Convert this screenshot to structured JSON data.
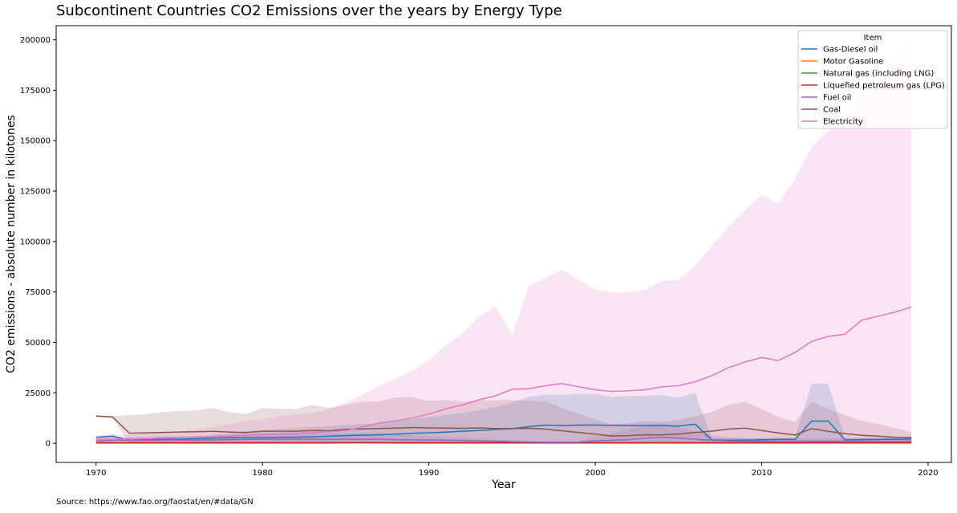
{
  "chart_data": {
    "type": "line",
    "title": "Subcontinent Countries CO2 Emissions over the years by Energy Type",
    "xlabel": "Year",
    "ylabel": "CO2 emissions - absolute number in kilotones",
    "xlim": [
      1967.6,
      2021.4
    ],
    "ylim": [
      -9500,
      207000
    ],
    "xticks": [
      1970,
      1980,
      1990,
      2000,
      2010,
      2020
    ],
    "yticks": [
      0,
      25000,
      50000,
      75000,
      100000,
      125000,
      150000,
      175000,
      200000
    ],
    "ytick_labels": [
      "0",
      "25000",
      "50000",
      "75000",
      "100000",
      "125000",
      "150000",
      "175000",
      "200000"
    ],
    "grid": false,
    "legend": {
      "title": "Item",
      "position": "top-right"
    },
    "source": "Source: https://www.fao.org/faostat/en/#data/GN",
    "x": [
      1970,
      1971,
      1972,
      1973,
      1974,
      1975,
      1976,
      1977,
      1978,
      1979,
      1980,
      1981,
      1982,
      1983,
      1984,
      1985,
      1986,
      1987,
      1988,
      1989,
      1990,
      1991,
      1992,
      1993,
      1994,
      1995,
      1996,
      1997,
      1998,
      1999,
      2000,
      2001,
      2002,
      2003,
      2004,
      2005,
      2006,
      2007,
      2008,
      2009,
      2010,
      2011,
      2012,
      2013,
      2014,
      2015,
      2016,
      2017,
      2018,
      2019
    ],
    "series": [
      {
        "name": "Gas-Diesel oil",
        "color": "#1f77b4",
        "values": [
          3000,
          3500,
          1500,
          1700,
          2000,
          2000,
          2200,
          2500,
          2700,
          2800,
          2800,
          2900,
          3000,
          3200,
          3500,
          3800,
          4000,
          4200,
          4500,
          5000,
          5200,
          5500,
          6000,
          6300,
          6800,
          7200,
          8200,
          9000,
          8800,
          9000,
          9000,
          8900,
          8800,
          8800,
          8800,
          8500,
          9500,
          1600,
          1500,
          1600,
          1700,
          1900,
          1900,
          11000,
          11000,
          1700,
          1800,
          1900,
          2000,
          2100
        ],
        "ci_lower": [
          0,
          0,
          0,
          0,
          0,
          0,
          0,
          0,
          0,
          0,
          0,
          0,
          0,
          0,
          0,
          0,
          0,
          0,
          0,
          0,
          0,
          0,
          0,
          0,
          0,
          0,
          0,
          0,
          0,
          0,
          0,
          0,
          0,
          0,
          0,
          0,
          0,
          0,
          0,
          0,
          0,
          0,
          0,
          0,
          0,
          0,
          0,
          0,
          0,
          0
        ],
        "ci_upper": [
          3200,
          3700,
          2000,
          2500,
          3000,
          3200,
          3500,
          4000,
          5000,
          6000,
          6500,
          7000,
          7500,
          8000,
          8500,
          9000,
          9500,
          10000,
          11000,
          12000,
          13000,
          14000,
          15000,
          16500,
          18000,
          20000,
          23000,
          24000,
          24000,
          24500,
          24500,
          23000,
          23500,
          23500,
          24000,
          22500,
          25000,
          2500,
          2500,
          2500,
          2500,
          2800,
          2800,
          29500,
          29500,
          2600,
          2700,
          2800,
          2900,
          3000
        ]
      },
      {
        "name": "Motor Gasoline",
        "color": "#ff7f0e",
        "values": [
          200,
          200,
          200,
          200,
          200,
          200,
          200,
          200,
          200,
          200,
          200,
          200,
          200,
          200,
          200,
          200,
          200,
          200,
          200,
          200,
          200,
          200,
          200,
          200,
          200,
          200,
          200,
          200,
          200,
          200,
          200,
          200,
          200,
          200,
          200,
          200,
          200,
          200,
          200,
          200,
          200,
          200,
          200,
          200,
          200,
          200,
          200,
          200,
          200,
          200
        ],
        "ci_lower": [
          0,
          0,
          0,
          0,
          0,
          0,
          0,
          0,
          0,
          0,
          0,
          0,
          0,
          0,
          0,
          0,
          0,
          0,
          0,
          0,
          0,
          0,
          0,
          0,
          0,
          0,
          0,
          0,
          0,
          0,
          0,
          0,
          0,
          0,
          0,
          0,
          0,
          0,
          0,
          0,
          0,
          0,
          0,
          0,
          0,
          0,
          0,
          0,
          0,
          0
        ],
        "ci_upper": [
          600,
          600,
          600,
          600,
          600,
          600,
          600,
          600,
          600,
          600,
          600,
          600,
          600,
          600,
          600,
          600,
          600,
          600,
          600,
          600,
          600,
          600,
          600,
          600,
          600,
          600,
          600,
          600,
          600,
          600,
          600,
          600,
          600,
          600,
          600,
          600,
          600,
          600,
          600,
          600,
          600,
          600,
          600,
          600,
          600,
          600,
          600,
          600,
          600,
          600
        ]
      },
      {
        "name": "Natural gas (including LNG)",
        "color": "#2ca02c",
        "values": [
          100,
          100,
          100,
          100,
          100,
          100,
          100,
          100,
          100,
          100,
          100,
          100,
          100,
          100,
          100,
          200,
          300,
          200,
          100,
          100,
          100,
          100,
          100,
          100,
          100,
          100,
          100,
          100,
          100,
          100,
          100,
          100,
          100,
          100,
          100,
          100,
          100,
          100,
          100,
          100,
          100,
          100,
          100,
          100,
          100,
          100,
          100,
          100,
          100,
          100
        ],
        "ci_lower": [
          0,
          0,
          0,
          0,
          0,
          0,
          0,
          0,
          0,
          0,
          0,
          0,
          0,
          0,
          0,
          0,
          0,
          0,
          0,
          0,
          0,
          0,
          0,
          0,
          0,
          0,
          0,
          0,
          0,
          0,
          0,
          0,
          0,
          0,
          0,
          0,
          0,
          0,
          0,
          0,
          0,
          0,
          0,
          0,
          0,
          0,
          0,
          0,
          0,
          0
        ],
        "ci_upper": [
          300,
          300,
          300,
          300,
          300,
          300,
          300,
          300,
          300,
          300,
          300,
          300,
          300,
          300,
          300,
          600,
          1000,
          600,
          300,
          300,
          300,
          300,
          300,
          300,
          300,
          300,
          300,
          300,
          300,
          300,
          300,
          300,
          300,
          300,
          300,
          300,
          300,
          300,
          300,
          300,
          300,
          300,
          300,
          300,
          300,
          300,
          300,
          300,
          300,
          300
        ]
      },
      {
        "name": "Liquefied petroleum gas (LPG)",
        "color": "#d62728",
        "values": [
          300,
          300,
          300,
          300,
          300,
          300,
          300,
          300,
          300,
          300,
          300,
          300,
          300,
          300,
          300,
          300,
          300,
          300,
          300,
          300,
          300,
          300,
          300,
          300,
          300,
          300,
          300,
          300,
          300,
          300,
          300,
          300,
          300,
          300,
          300,
          300,
          300,
          300,
          300,
          300,
          300,
          300,
          300,
          300,
          300,
          300,
          300,
          300,
          300,
          300
        ],
        "ci_lower": [
          0,
          0,
          0,
          0,
          0,
          0,
          0,
          0,
          0,
          0,
          0,
          0,
          0,
          0,
          0,
          0,
          0,
          0,
          0,
          0,
          0,
          0,
          0,
          0,
          0,
          0,
          0,
          0,
          0,
          0,
          0,
          0,
          0,
          0,
          0,
          0,
          0,
          0,
          0,
          0,
          0,
          0,
          0,
          0,
          0,
          0,
          0,
          0,
          0,
          0
        ],
        "ci_upper": [
          700,
          700,
          700,
          700,
          700,
          700,
          700,
          700,
          700,
          700,
          700,
          700,
          700,
          700,
          700,
          700,
          700,
          700,
          700,
          700,
          700,
          700,
          700,
          700,
          700,
          700,
          700,
          700,
          700,
          700,
          700,
          700,
          700,
          700,
          700,
          700,
          700,
          700,
          700,
          700,
          700,
          700,
          700,
          700,
          700,
          700,
          700,
          700,
          700,
          700
        ]
      },
      {
        "name": "Fuel oil",
        "color": "#9467bd",
        "values": [
          1200,
          1500,
          1500,
          1500,
          1600,
          1600,
          1600,
          1700,
          1800,
          1900,
          2000,
          2000,
          2000,
          2000,
          2000,
          2000,
          2000,
          2000,
          1800,
          1700,
          1600,
          1500,
          1400,
          1200,
          1000,
          800,
          600,
          500,
          500,
          500,
          1200,
          1500,
          1800,
          2500,
          3000,
          2500,
          2000,
          1500,
          1200,
          1000,
          1000,
          1000,
          1000,
          1000,
          1000,
          1000,
          1000,
          1000,
          1000,
          1000
        ],
        "ci_lower": [
          0,
          0,
          0,
          0,
          0,
          0,
          0,
          0,
          0,
          0,
          0,
          0,
          0,
          0,
          0,
          0,
          0,
          0,
          0,
          0,
          0,
          0,
          0,
          0,
          0,
          0,
          0,
          0,
          0,
          0,
          0,
          0,
          0,
          0,
          0,
          0,
          0,
          0,
          0,
          0,
          0,
          0,
          0,
          0,
          0,
          0,
          0,
          0,
          0,
          0
        ],
        "ci_upper": [
          2500,
          3000,
          3000,
          3000,
          3500,
          3500,
          3500,
          4000,
          4000,
          4500,
          5000,
          5000,
          5000,
          5000,
          5000,
          5000,
          5000,
          5000,
          4500,
          4000,
          3500,
          3000,
          3000,
          2500,
          2000,
          1600,
          1200,
          1000,
          1000,
          1000,
          3500,
          5000,
          7000,
          9000,
          10000,
          8000,
          6000,
          4000,
          3000,
          2500,
          2500,
          2500,
          2500,
          2500,
          2500,
          2500,
          2500,
          2500,
          2500,
          2500
        ]
      },
      {
        "name": "Coal",
        "color": "#8c564b",
        "values": [
          13500,
          13000,
          5000,
          5200,
          5400,
          5600,
          5700,
          5900,
          5600,
          5300,
          6000,
          6000,
          6000,
          6300,
          6200,
          6900,
          7100,
          7300,
          7500,
          7800,
          7600,
          7500,
          7400,
          7600,
          7300,
          7300,
          7400,
          7000,
          6200,
          5300,
          4500,
          3600,
          3800,
          4200,
          4100,
          4600,
          5400,
          6000,
          7000,
          7500,
          6300,
          5100,
          4100,
          7200,
          5900,
          4800,
          3900,
          3500,
          3000,
          2900
        ],
        "ci_lower": [
          13000,
          12500,
          0,
          0,
          0,
          0,
          0,
          0,
          0,
          0,
          0,
          0,
          0,
          0,
          0,
          0,
          0,
          0,
          0,
          0,
          0,
          0,
          0,
          0,
          0,
          0,
          0,
          0,
          0,
          0,
          0,
          0,
          0,
          0,
          0,
          0,
          0,
          0,
          0,
          0,
          0,
          0,
          0,
          0,
          0,
          0,
          0,
          0,
          0,
          0
        ],
        "ci_upper": [
          14000,
          13500,
          14000,
          14500,
          15500,
          16000,
          16200,
          17500,
          15500,
          14500,
          17500,
          17000,
          17000,
          19000,
          17500,
          19000,
          20500,
          20700,
          22700,
          22800,
          21000,
          21500,
          20500,
          21200,
          21300,
          21500,
          21000,
          20800,
          17500,
          14500,
          12000,
          9500,
          10000,
          11000,
          10500,
          11500,
          13500,
          15500,
          19000,
          20500,
          17000,
          13000,
          10700,
          20500,
          17000,
          14000,
          11000,
          9500,
          7500,
          5500
        ]
      },
      {
        "name": "Electricity",
        "color": "#e377c2",
        "values": [
          1800,
          2000,
          2200,
          2400,
          2600,
          2800,
          3000,
          3300,
          3600,
          3900,
          4200,
          4500,
          4900,
          5300,
          5700,
          6300,
          8000,
          10000,
          11000,
          12500,
          14500,
          17000,
          19000,
          21500,
          23500,
          26800,
          27000,
          28500,
          29600,
          28000,
          26500,
          25700,
          26000,
          26500,
          28000,
          28500,
          30500,
          33500,
          37500,
          40300,
          42500,
          41000,
          45000,
          50500,
          53000,
          54000,
          61000,
          63000,
          65000,
          67500
        ],
        "ci_lower": [
          0,
          0,
          0,
          0,
          0,
          0,
          0,
          0,
          0,
          0,
          0,
          0,
          0,
          0,
          0,
          0,
          0,
          0,
          0,
          0,
          0,
          0,
          0,
          0,
          0,
          0,
          0,
          0,
          0,
          0,
          0,
          0,
          0,
          0,
          0,
          0,
          0,
          0,
          0,
          0,
          0,
          0,
          0,
          0,
          0,
          0,
          0,
          0,
          0,
          0
        ],
        "ci_upper": [
          4000,
          4500,
          4000,
          5000,
          5500,
          6000,
          7000,
          8000,
          9500,
          11000,
          12000,
          13500,
          14500,
          15000,
          17000,
          20000,
          24000,
          28500,
          32000,
          36000,
          41000,
          48500,
          54500,
          62500,
          68000,
          53500,
          78000,
          82000,
          86000,
          81000,
          76500,
          74500,
          75000,
          76000,
          80500,
          81000,
          88000,
          97500,
          107500,
          115500,
          123000,
          119000,
          131000,
          147000,
          155000,
          160000,
          176000,
          180000,
          188000,
          197000
        ]
      }
    ]
  }
}
